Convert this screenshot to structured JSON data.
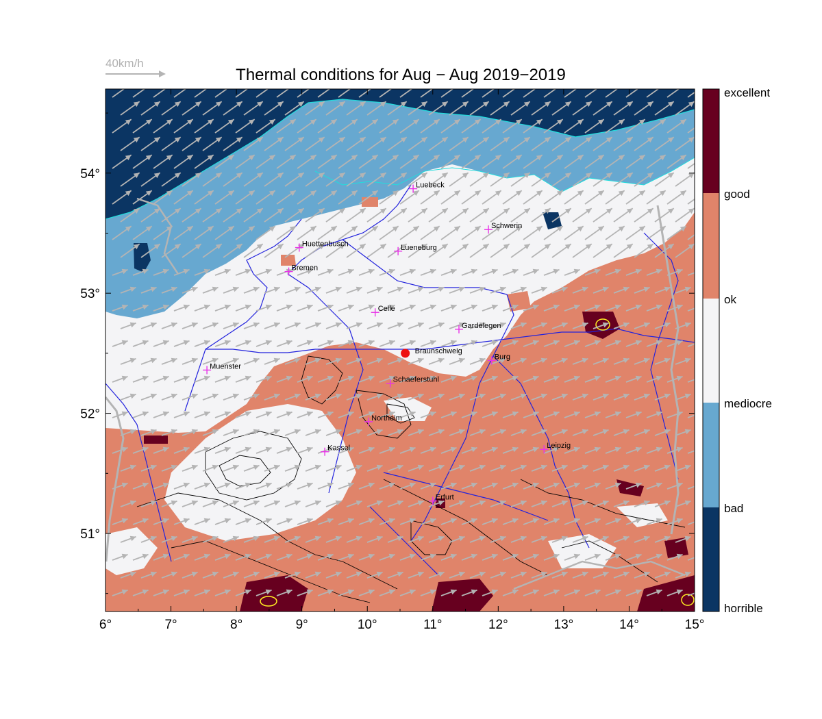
{
  "title": "Thermal conditions for Aug − Aug  2019−2019",
  "wind_reference": {
    "label": "40km/h",
    "speed_kmh": 40,
    "color": "#b4b4b4"
  },
  "axes": {
    "x_ticks": [
      "6°",
      "7°",
      "8°",
      "9°",
      "10°",
      "11°",
      "12°",
      "13°",
      "14°",
      "15°"
    ],
    "y_ticks": [
      "51°",
      "52°",
      "53°",
      "54°"
    ],
    "lon_range": [
      6,
      15
    ],
    "lat_range": [
      50.35,
      54.7
    ]
  },
  "colorbar": {
    "labels": [
      "excellent",
      "good",
      "ok",
      "mediocre",
      "bad",
      "horrible"
    ],
    "colors": [
      "#67001f",
      "#e0846a",
      "#f4f4f6",
      "#67a8d0",
      "#0b3563"
    ]
  },
  "categories": {
    "horrible": "#0b3563",
    "bad": "#67a8d0",
    "mediocre": "#f4f4f6",
    "ok": "#e0846a",
    "excellent": "#67001f"
  },
  "site": {
    "name": "Braunschweig",
    "lon": 10.58,
    "lat": 52.5,
    "color": "#ee1111"
  },
  "cities": [
    {
      "name": "Luebeck",
      "lon": 10.7,
      "lat": 53.87
    },
    {
      "name": "Schwerin",
      "lon": 11.85,
      "lat": 53.53
    },
    {
      "name": "Huettenbusch",
      "lon": 8.96,
      "lat": 53.38
    },
    {
      "name": "Lueneburg",
      "lon": 10.47,
      "lat": 53.35
    },
    {
      "name": "Bremen",
      "lon": 8.8,
      "lat": 53.18
    },
    {
      "name": "Celle",
      "lon": 10.12,
      "lat": 52.84
    },
    {
      "name": "Gardelegen",
      "lon": 11.4,
      "lat": 52.7
    },
    {
      "name": "Burg",
      "lon": 11.9,
      "lat": 52.44
    },
    {
      "name": "Muenster",
      "lon": 7.55,
      "lat": 52.36
    },
    {
      "name": "Schaeferstuhl",
      "lon": 10.35,
      "lat": 52.25
    },
    {
      "name": "Northeim",
      "lon": 10.02,
      "lat": 51.93
    },
    {
      "name": "Kassel",
      "lon": 9.35,
      "lat": 51.68
    },
    {
      "name": "Leipzig",
      "lon": 12.7,
      "lat": 51.7
    },
    {
      "name": "Erfurt",
      "lon": 11.0,
      "lat": 51.27
    }
  ],
  "colors": {
    "city_marker": "#e833e8",
    "river": "#2222dd",
    "coast": "#22dddd",
    "contour": "#000000",
    "border": "#b4b4b4",
    "wind_arrow": "#b4b4b4"
  }
}
